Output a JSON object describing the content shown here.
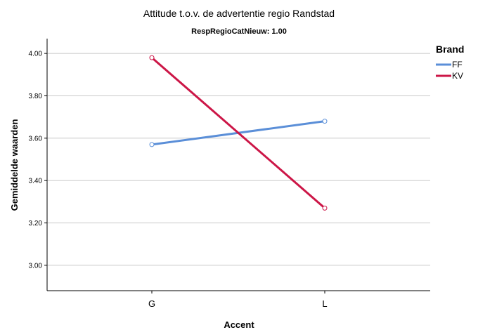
{
  "chart_data": {
    "type": "line",
    "title": "Attitude t.o.v. de advertentie regio Randstad",
    "subtitle": "RespRegioCatNieuw: 1.00",
    "xlabel": "Accent",
    "ylabel": "Gemiddelde waarden",
    "categories": [
      "G",
      "L"
    ],
    "ylim": [
      2.88,
      4.07
    ],
    "yticks": [
      "3.00",
      "3.20",
      "3.40",
      "3.60",
      "3.80",
      "4.00"
    ],
    "grid": true,
    "legend": {
      "title": "Brand",
      "placement": "right"
    },
    "series": [
      {
        "name": "FF",
        "values": [
          3.57,
          3.68
        ],
        "color": "#5b8fd8"
      },
      {
        "name": "KV",
        "values": [
          3.98,
          3.27
        ],
        "color": "#cc1647"
      }
    ]
  }
}
